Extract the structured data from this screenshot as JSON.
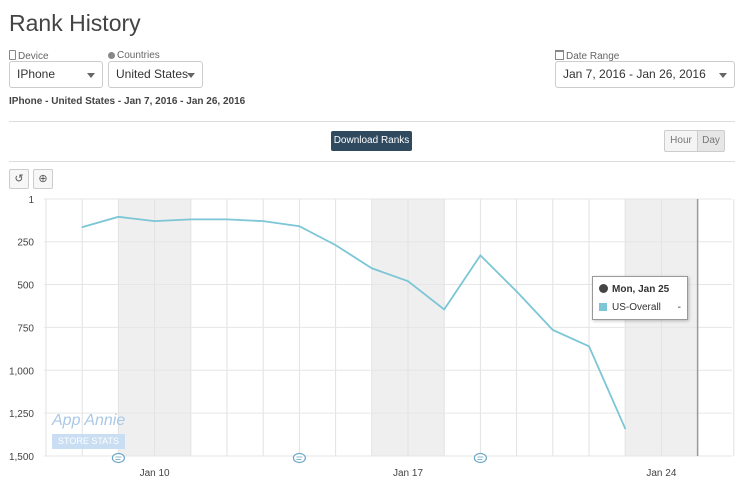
{
  "page": {
    "title": "Rank History"
  },
  "filters": {
    "device": {
      "label": "Device",
      "value": "IPhone",
      "icon": "device-icon"
    },
    "countries": {
      "label": "Countries",
      "value": "United States",
      "icon": "globe-icon"
    },
    "date_range": {
      "label": "Date Range",
      "value": "Jan 7, 2016 - Jan 26, 2016",
      "icon": "calendar-icon"
    }
  },
  "summary": "IPhone - United States - Jan 7, 2016 - Jan 26, 2016",
  "toolbar": {
    "download_label": "Download Ranks",
    "hour_label": "Hour",
    "day_label": "Day",
    "selected_granularity": "Day"
  },
  "chart_tools": {
    "reset_icon": "undo-icon",
    "zoom_icon": "zoom-in-icon"
  },
  "watermark": {
    "line1": "App Annie",
    "line2": "STORE STATS"
  },
  "tooltip": {
    "date": "Mon, Jan 25",
    "series": "US-Overall",
    "value": "-"
  },
  "colors": {
    "line": "#7cc6d6",
    "button_dark": "#2f4a5f",
    "weekend_band": "#efefef",
    "tooltip_swatch": "#7cc6d6"
  },
  "chart_data": {
    "type": "line",
    "title": "",
    "xlabel": "",
    "ylabel": "",
    "y_reversed": true,
    "ylim": [
      1,
      1500
    ],
    "y_ticks": [
      "1",
      "250",
      "500",
      "750",
      "1,000",
      "1,250",
      "1,500"
    ],
    "y_tick_values": [
      1,
      250,
      500,
      750,
      1000,
      1250,
      1500
    ],
    "x_range": [
      "Jan 7",
      "Jan 26"
    ],
    "x_tick_labels": [
      "Jan 10",
      "Jan 17",
      "Jan 24"
    ],
    "x_tick_days": [
      10,
      17,
      24
    ],
    "weekend_bands": [
      [
        9,
        11
      ],
      [
        16,
        18
      ],
      [
        23,
        25
      ]
    ],
    "grid": "vertical daily lines, horizontal at y ticks",
    "annotation_marker_days": [
      9,
      14,
      19
    ],
    "series": [
      {
        "name": "US-Overall",
        "days": [
          8,
          9,
          10,
          11,
          12,
          13,
          14,
          15,
          16,
          17,
          18,
          19,
          20,
          21,
          22,
          23
        ],
        "values": [
          165,
          105,
          130,
          120,
          120,
          130,
          160,
          270,
          405,
          480,
          645,
          330,
          540,
          765,
          860,
          1340
        ]
      }
    ],
    "crosshair_day": 25
  }
}
